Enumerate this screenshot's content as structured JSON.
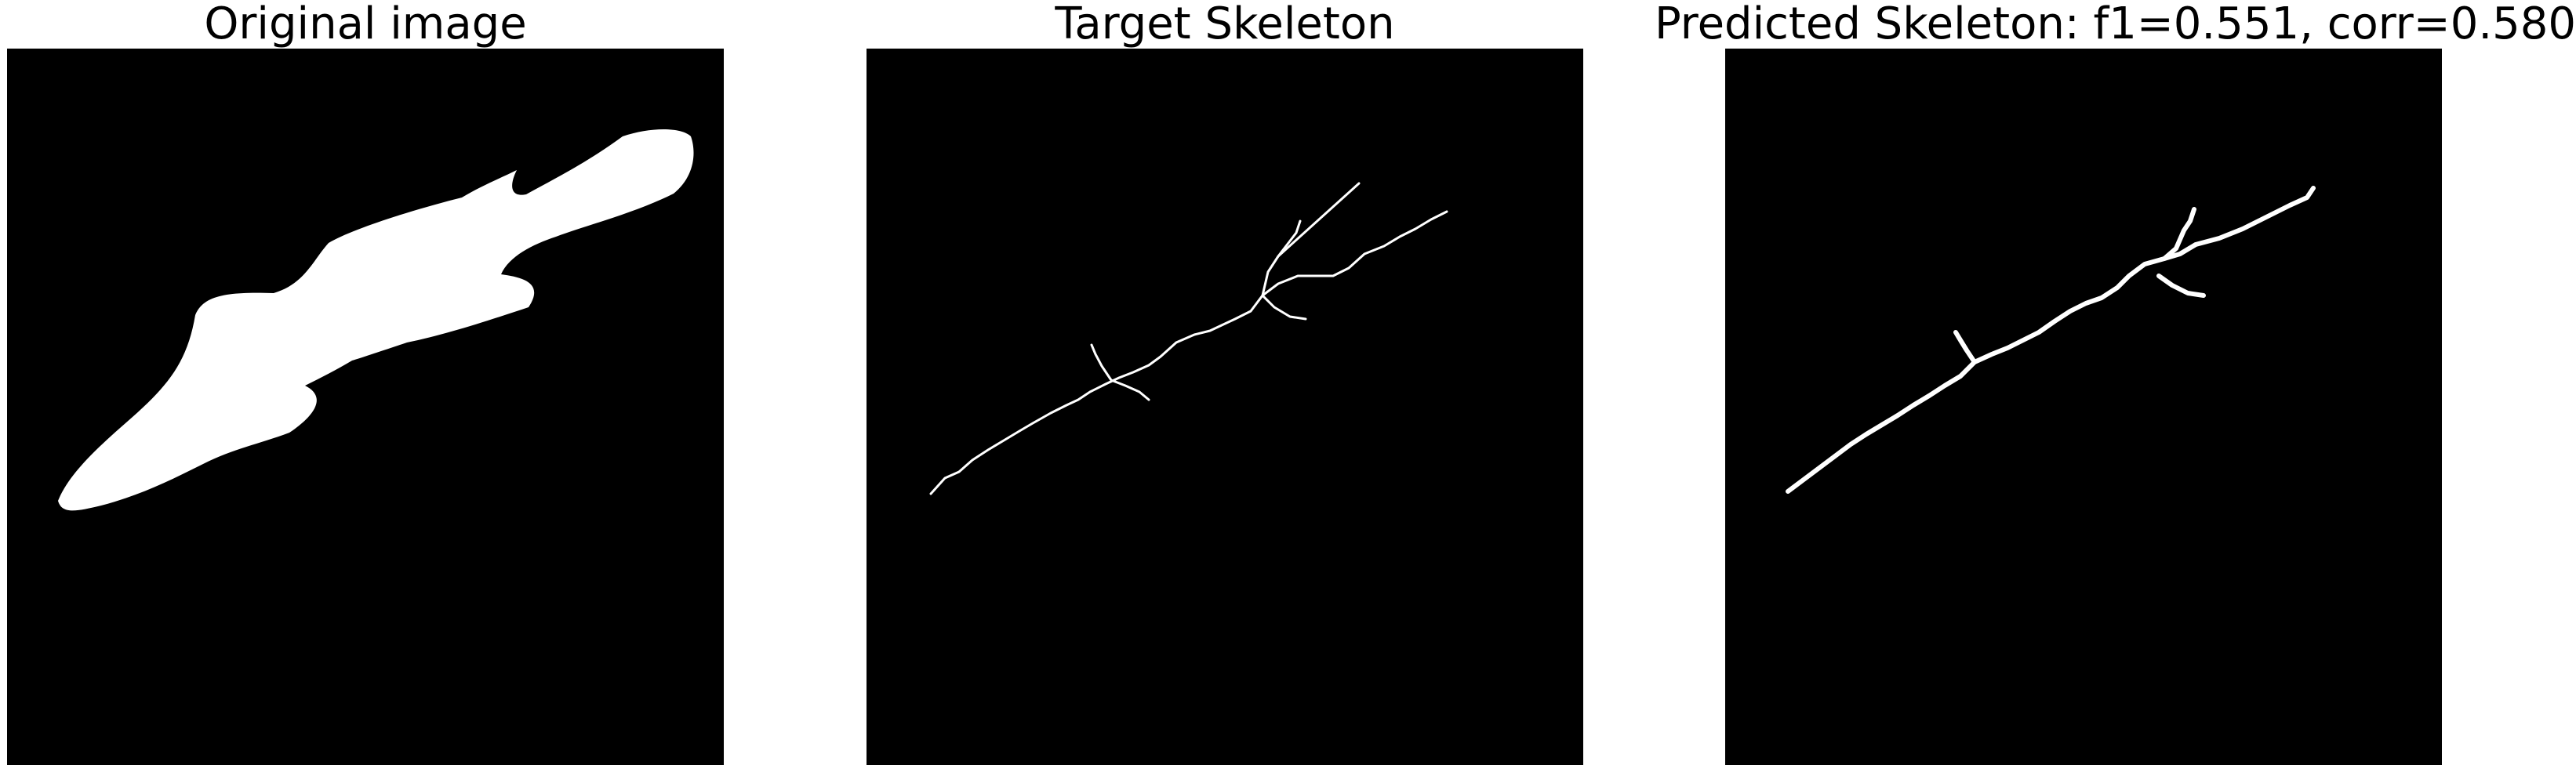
{
  "panels": [
    {
      "title": "Original image"
    },
    {
      "title": "Target Skeleton"
    },
    {
      "title": "Predicted Skeleton: f1=0.551, corr=0.580"
    }
  ],
  "colors": {
    "background": "#ffffff",
    "image_background": "#000000",
    "foreground": "#ffffff"
  }
}
